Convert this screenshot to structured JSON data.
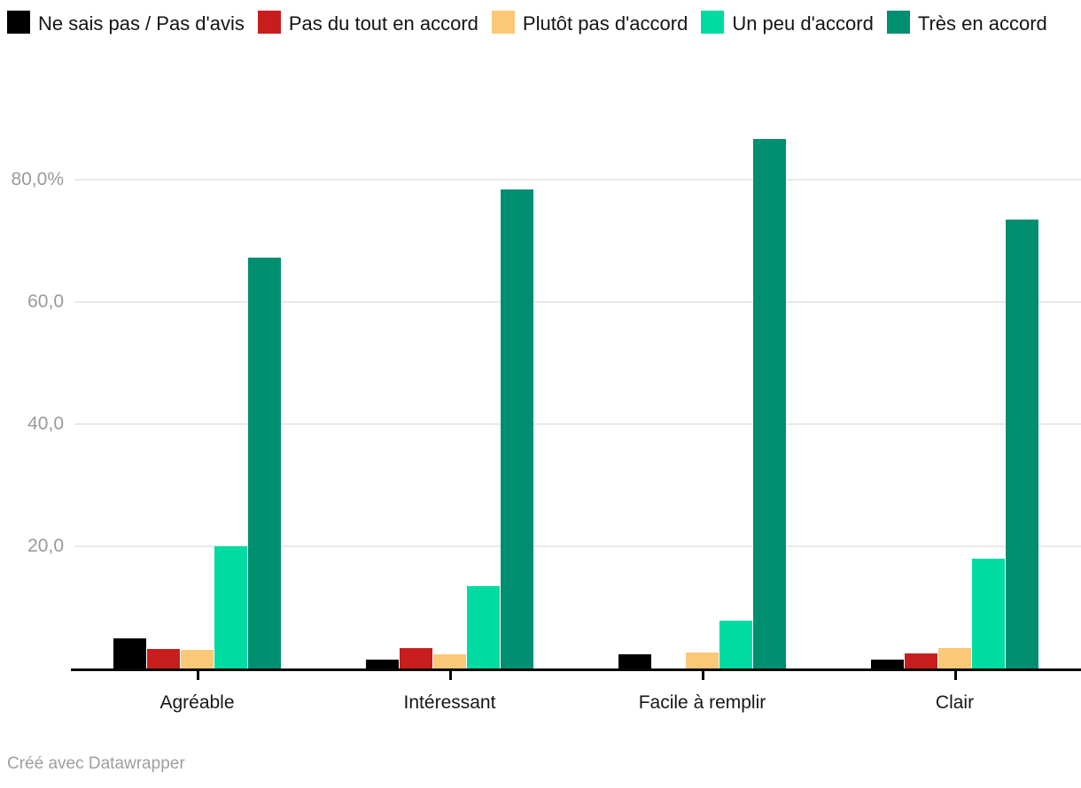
{
  "chart_data": {
    "type": "bar",
    "grouped": true,
    "title": "",
    "categories": [
      "Agréable",
      "Intéressant",
      "Facile à remplir",
      "Clair"
    ],
    "series": [
      {
        "name": "Ne sais pas / Pas d'avis",
        "color": "#000000",
        "values": [
          5.0,
          1.4,
          2.3,
          1.5
        ]
      },
      {
        "name": "Pas du tout en accord",
        "color": "#c71e1d",
        "values": [
          3.2,
          3.3,
          0,
          2.4
        ]
      },
      {
        "name": "Plutôt pas d'accord",
        "color": "#fbc878",
        "values": [
          3.1,
          2.3,
          2.6,
          3.3
        ]
      },
      {
        "name": "Un peu d'accord",
        "color": "#00dba2",
        "values": [
          20.0,
          13.5,
          7.9,
          18.0
        ]
      },
      {
        "name": "Très en accord",
        "color": "#008e71",
        "values": [
          67.2,
          78.4,
          86.7,
          73.5
        ]
      }
    ],
    "y_axis": {
      "unit": "%",
      "min": 0,
      "ticks": [
        {
          "label": "20,0",
          "pct": 20
        },
        {
          "label": "40,0",
          "pct": 40
        },
        {
          "label": "60,0",
          "pct": 60
        },
        {
          "label": "80,0%",
          "pct": 80
        }
      ]
    },
    "legend_position": "top",
    "grid": true,
    "style_colors": {
      "gridline": "#e9e9e9",
      "axis_line": "#060606",
      "y_tick_text": "#9a9a9a",
      "category_text": "#161616",
      "footer_text": "#9e9e9e"
    }
  },
  "footer": {
    "credit": "Créé avec Datawrapper"
  }
}
